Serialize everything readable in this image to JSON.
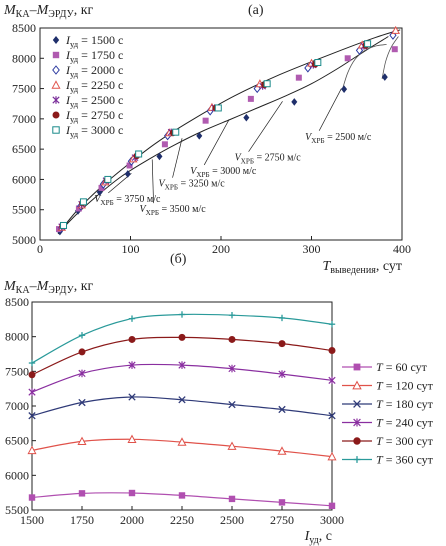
{
  "chart_data": [
    {
      "panel_label": "(а)",
      "type": "scatter",
      "title": "",
      "ylabel": "M_КА−M_ЭРДУ, кг",
      "ylabel_parts": {
        "main": "M",
        "sub1": "КА",
        "dash": "–",
        "main2": "M",
        "sub2": "ЭРДУ",
        "unit": ", кг"
      },
      "xlabel": "T_выведения, сут",
      "xlabel_parts": {
        "main": "T",
        "sub": "выведения",
        "unit": ", сут"
      },
      "xlim": [
        0,
        400
      ],
      "ylim": [
        5000,
        8500
      ],
      "xticks": [
        0,
        100,
        200,
        300,
        400
      ],
      "yticks": [
        5000,
        5500,
        6000,
        6500,
        7000,
        7500,
        8000,
        8500
      ],
      "grid": false,
      "legend_position": "top-left",
      "series": [
        {
          "name": "Iуд = 1500 с",
          "label_parts": {
            "main": "I",
            "sub": "уд",
            "value": " = 1500 с"
          },
          "marker": "diamond-filled",
          "color": "#1f2f6b",
          "x": [
            22,
            42,
            66,
            97,
            132,
            176,
            228,
            281,
            336,
            381
          ],
          "y": [
            5140,
            5480,
            5790,
            6090,
            6380,
            6720,
            7020,
            7280,
            7490,
            7690
          ]
        },
        {
          "name": "Iуд = 1750 с",
          "label_parts": {
            "main": "I",
            "sub": "уд",
            "value": " = 1750 с"
          },
          "marker": "square-filled",
          "color": "#b05bb0",
          "x": [
            21,
            43,
            68,
            99,
            138,
            183,
            233,
            286,
            340,
            392
          ],
          "y": [
            5180,
            5520,
            5860,
            6230,
            6580,
            6970,
            7330,
            7680,
            8000,
            8150
          ]
        },
        {
          "name": "Iуд = 2000 с",
          "label_parts": {
            "main": "I",
            "sub": "уд",
            "value": " = 2000 с"
          },
          "marker": "diamond-open",
          "color": "#2b3aa0",
          "x": [
            24,
            45,
            70,
            101,
            141,
            188,
            240,
            296,
            353,
            390
          ],
          "y": [
            5200,
            5560,
            5920,
            6300,
            6720,
            7130,
            7500,
            7840,
            8130,
            8380
          ]
        },
        {
          "name": "Iуд = 2250 с",
          "label_parts": {
            "main": "I",
            "sub": "уд",
            "value": " = 2250 с"
          },
          "marker": "triangle-open",
          "color": "#e0524a",
          "x": [
            24,
            46,
            72,
            103,
            143,
            190,
            243,
            300,
            356,
            393
          ],
          "y": [
            5210,
            5580,
            5960,
            6340,
            6770,
            7190,
            7580,
            7920,
            8220,
            8460
          ]
        },
        {
          "name": "Iуд = 2500 с",
          "label_parts": {
            "main": "I",
            "sub": "уд",
            "value": " = 2500 с"
          },
          "marker": "star",
          "color": "#7a2f9a",
          "x": [
            24,
            46,
            73,
            105,
            145,
            193,
            246,
            302,
            358
          ],
          "y": [
            5220,
            5590,
            5980,
            6360,
            6780,
            7180,
            7540,
            7890,
            8200
          ]
        },
        {
          "name": "Iуд = 2750 с",
          "label_parts": {
            "main": "I",
            "sub": "уд",
            "value": " = 2750 с"
          },
          "marker": "circle-filled",
          "color": "#8b1a1a",
          "x": [
            25,
            47,
            74,
            107,
            147,
            194,
            248,
            304,
            360
          ],
          "y": [
            5230,
            5610,
            5990,
            6390,
            6770,
            7180,
            7560,
            7900,
            8210
          ]
        },
        {
          "name": "Iуд = 3000 с",
          "label_parts": {
            "main": "I",
            "sub": "уд",
            "value": " = 3000 с"
          },
          "marker": "square-open",
          "color": "#1a8a8a",
          "x": [
            26,
            48,
            75,
            109,
            150,
            197,
            251,
            307,
            362
          ],
          "y": [
            5240,
            5630,
            6000,
            6420,
            6780,
            7180,
            7580,
            7930,
            8240
          ]
        }
      ],
      "envelope": {
        "x": [
          20,
          40,
          65,
          95,
          130,
          170,
          215,
          265,
          320,
          370,
          398
        ],
        "y": [
          5100,
          5470,
          5840,
          6220,
          6620,
          7000,
          7380,
          7730,
          8060,
          8340,
          8470
        ]
      },
      "lower_curve": {
        "x": [
          20,
          40,
          60,
          90,
          120,
          150,
          180,
          210,
          240,
          270,
          300,
          330,
          360,
          385
        ],
        "y": [
          5110,
          5420,
          5690,
          6050,
          6330,
          6580,
          6800,
          6990,
          7180,
          7370,
          7580,
          7840,
          8130,
          8360
        ]
      },
      "hooks": [
        {
          "x": [
            334,
            340,
            348,
            358,
            370,
            383
          ],
          "y": [
            7480,
            7760,
            7980,
            8120,
            8200,
            8230
          ]
        },
        {
          "x": [
            378,
            382,
            388,
            396
          ],
          "y": [
            7660,
            7950,
            8180,
            8360
          ]
        }
      ],
      "annotations": [
        {
          "label_parts": {
            "main": "V",
            "sub": "ХРБ",
            "value": " = 2500 м/с"
          },
          "x_text": 293,
          "y_text": 6655,
          "x_pt": 333,
          "y_pt": 7500
        },
        {
          "label_parts": {
            "main": "V",
            "sub": "ХРБ",
            "value": " = 2750 м/с"
          },
          "x_text": 215,
          "y_text": 6310,
          "x_pt": 268,
          "y_pt": 7290
        },
        {
          "label_parts": {
            "main": "V",
            "sub": "ХРБ",
            "value": " = 3000 м/с"
          },
          "x_text": 166,
          "y_text": 6090,
          "x_pt": 209,
          "y_pt": 6990
        },
        {
          "label_parts": {
            "main": "V",
            "sub": "ХРБ",
            "value": " = 3250 м/с"
          },
          "x_text": 131,
          "y_text": 5880,
          "x_pt": 157,
          "y_pt": 6680
        },
        {
          "label_parts": {
            "main": "V",
            "sub": "ХРБ",
            "value": " = 3750 м/с"
          },
          "x_text": 60,
          "y_text": 5630,
          "x_pt": 101,
          "y_pt": 6100
        },
        {
          "label_parts": {
            "main": "V",
            "sub": "ХРБ",
            "value": " = 3500 м/с"
          },
          "x_text": 110,
          "y_text": 5460,
          "x_pt": 124,
          "y_pt": 6330
        }
      ]
    },
    {
      "panel_label": "(б)",
      "type": "line",
      "title": "",
      "ylabel": "M_КА−M_ЭРДУ, кг",
      "ylabel_parts": {
        "main": "M",
        "sub1": "КА",
        "dash": "–",
        "main2": "M",
        "sub2": "ЭРДУ",
        "unit": ", кг"
      },
      "xlabel": "Iуд, с",
      "xlabel_parts": {
        "main": "I",
        "sub": "уд",
        "unit": ", с"
      },
      "xlim": [
        1500,
        3000
      ],
      "ylim": [
        5500,
        8500
      ],
      "xticks": [
        1500,
        1750,
        2000,
        2250,
        2500,
        2750,
        3000
      ],
      "yticks": [
        5500,
        6000,
        6500,
        7000,
        7500,
        8000,
        8500
      ],
      "grid": false,
      "legend_position": "right",
      "categories": [
        1500,
        1750,
        2000,
        2250,
        2500,
        2750,
        3000
      ],
      "series": [
        {
          "name": "T = 60 сут",
          "label_parts": {
            "main": "T",
            "value": " = 60 сут"
          },
          "marker": "square-filled",
          "color": "#b04fb0",
          "values": [
            5680,
            5740,
            5745,
            5710,
            5660,
            5610,
            5560
          ]
        },
        {
          "name": "T = 120 сут",
          "label_parts": {
            "main": "T",
            "value": " = 120 сут"
          },
          "marker": "triangle-open",
          "color": "#e0524a",
          "values": [
            6360,
            6490,
            6520,
            6480,
            6420,
            6350,
            6270
          ]
        },
        {
          "name": "T = 180 сут",
          "label_parts": {
            "main": "T",
            "value": " = 180 сут"
          },
          "marker": "x",
          "color": "#2f3a78",
          "values": [
            6860,
            7050,
            7130,
            7090,
            7020,
            6950,
            6860
          ]
        },
        {
          "name": "T = 240 сут",
          "label_parts": {
            "main": "T",
            "value": " = 240 сут"
          },
          "marker": "star",
          "color": "#8a2fa0",
          "values": [
            7200,
            7470,
            7590,
            7590,
            7540,
            7460,
            7370
          ]
        },
        {
          "name": "T = 300 сут",
          "label_parts": {
            "main": "T",
            "value": " = 300 сут"
          },
          "marker": "circle-filled",
          "color": "#8b1a1a",
          "values": [
            7450,
            7780,
            7960,
            7990,
            7960,
            7900,
            7800
          ]
        },
        {
          "name": "T = 360 сут",
          "label_parts": {
            "main": "T",
            "value": " = 360 сут"
          },
          "marker": "plus",
          "color": "#2a9a9a",
          "values": [
            7620,
            8020,
            8260,
            8320,
            8310,
            8270,
            8180
          ]
        }
      ]
    }
  ]
}
